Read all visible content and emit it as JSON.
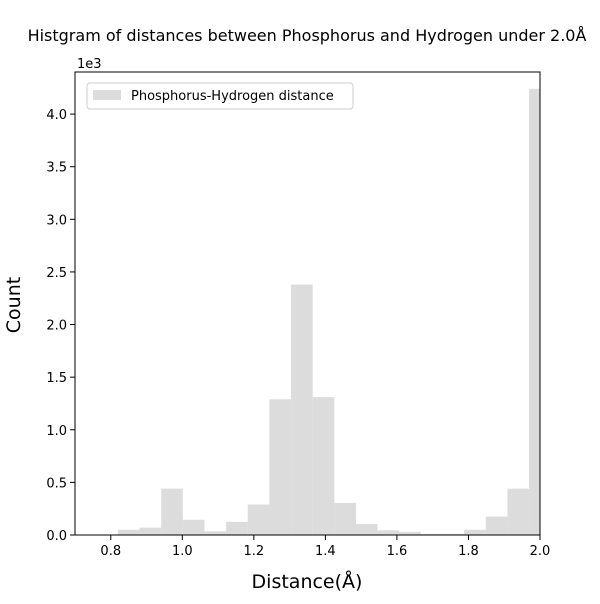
{
  "chart_data": {
    "type": "bar",
    "title": "Histgram of distances between Phosphorus and Hydrogen under 2.0Å",
    "xlabel": "Distance(Å)",
    "ylabel": "Count",
    "offset_text": "1e3",
    "xlim": [
      0.7,
      2.0
    ],
    "ylim": [
      0,
      4400
    ],
    "x_ticks": [
      0.8,
      1.0,
      1.2,
      1.4,
      1.6,
      1.8,
      2.0
    ],
    "x_tick_labels": [
      "0.8",
      "1.0",
      "1.2",
      "1.4",
      "1.6",
      "1.8",
      "2.0"
    ],
    "y_ticks": [
      0,
      500,
      1000,
      1500,
      2000,
      2500,
      3000,
      3500,
      4000
    ],
    "y_tick_labels": [
      "0.0",
      "0.5",
      "1.0",
      "1.5",
      "2.0",
      "2.5",
      "3.0",
      "3.5",
      "4.0"
    ],
    "bar_color": "#dcdcdc",
    "legend_position": "upper-left",
    "series": [
      {
        "name": "Phosphorus-Hydrogen distance",
        "bin_edges": [
          0.82,
          0.8805,
          0.941,
          1.0015,
          1.062,
          1.1225,
          1.183,
          1.2435,
          1.304,
          1.3645,
          1.425,
          1.4855,
          1.546,
          1.6065,
          1.667,
          1.7275,
          1.788,
          1.8485,
          1.909,
          1.9695,
          2.0
        ],
        "values": [
          50,
          70,
          440,
          145,
          35,
          125,
          290,
          1290,
          2380,
          1310,
          305,
          105,
          45,
          30,
          10,
          10,
          50,
          175,
          440,
          4240
        ]
      }
    ]
  }
}
